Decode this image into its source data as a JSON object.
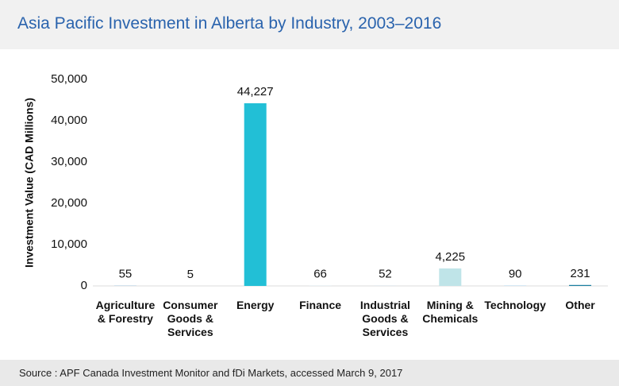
{
  "chart_data": {
    "type": "bar",
    "title": "Asia Pacific Investment in Alberta by Industry, 2003–2016",
    "y_label": "Investment Value (CAD Millions)",
    "source": "Source : APF Canada Investment Monitor and fDi Markets, accessed March 9, 2017",
    "categories": [
      "Agriculture & Forestry",
      "Consumer Goods & Services",
      "Energy",
      "Finance",
      "Industrial Goods & Services",
      "Mining & Chemicals",
      "Technology",
      "Other"
    ],
    "values": [
      55,
      5,
      44227,
      66,
      52,
      4225,
      90,
      231
    ],
    "value_labels": [
      "55",
      "5",
      "44,227",
      "66",
      "52",
      "4,225",
      "90",
      "231"
    ],
    "colors": [
      "#7fb3de",
      "#d6e3ea",
      "#22bfd6",
      "#d9ecf2",
      "#c9dde8",
      "#bfe4e8",
      "#a9d3ec",
      "#1b7fa0"
    ],
    "ylim": [
      0,
      50000
    ],
    "yticks": [
      0,
      {
        "value": 10000,
        "label": "10,000"
      },
      {
        "value": 20000,
        "label": "20,000"
      },
      {
        "value": 30000,
        "label": "30,000"
      },
      {
        "value": 40000,
        "label": "40,000"
      },
      {
        "value": 50000,
        "label": "50,000"
      }
    ]
  }
}
